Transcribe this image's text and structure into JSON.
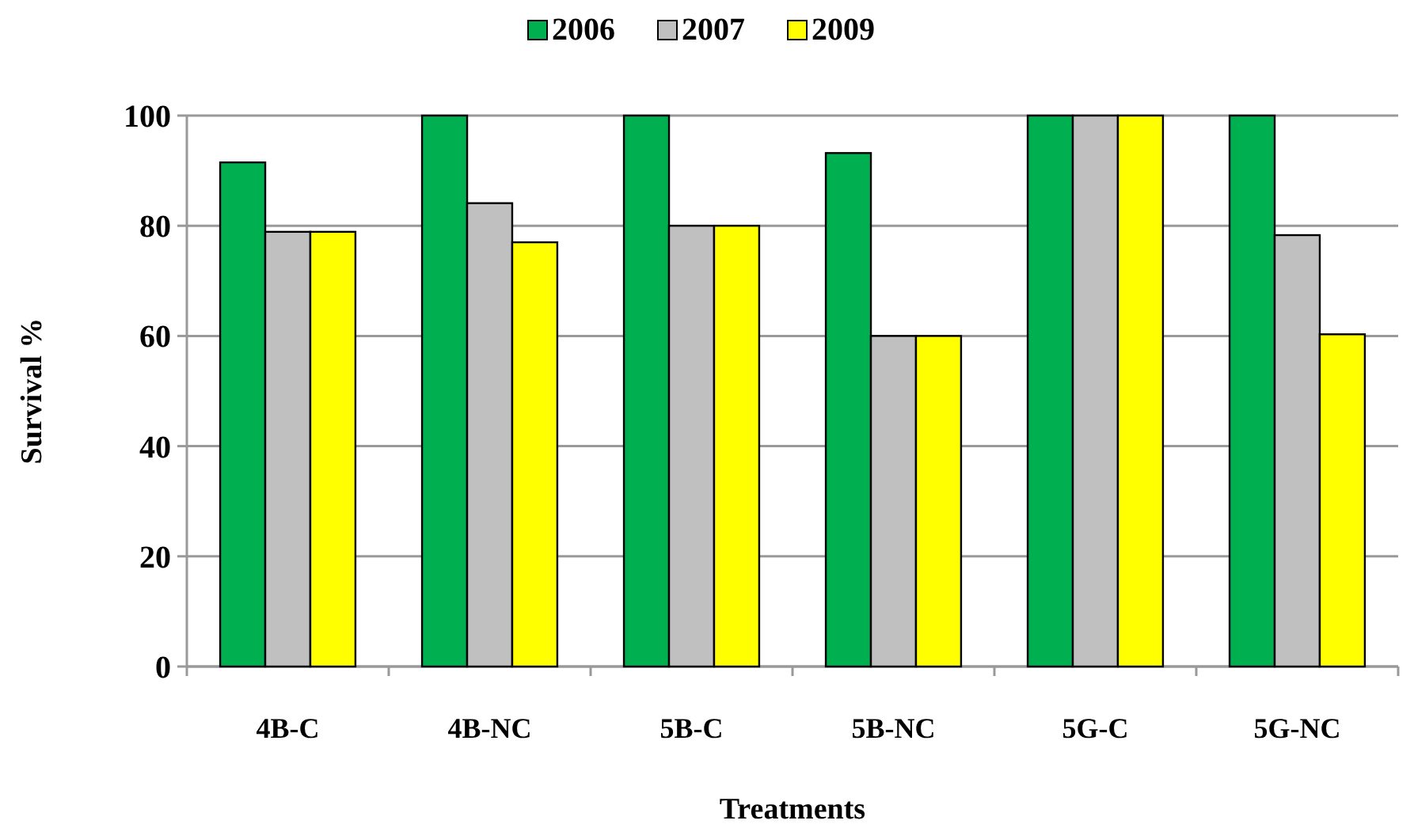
{
  "chart_data": {
    "type": "bar",
    "xlabel": "Treatments",
    "ylabel": "Survival %",
    "categories": [
      "4B-C",
      "4B-NC",
      "5B-C",
      "5B-NC",
      "5G-C",
      "5G-NC"
    ],
    "series": [
      {
        "name": "2006",
        "color": "#00b050",
        "values": [
          91.5,
          100,
          100,
          93.2,
          100,
          100
        ]
      },
      {
        "name": "2007",
        "color": "#c0c0c0",
        "values": [
          78.9,
          84.1,
          80,
          60,
          100,
          78.3
        ]
      },
      {
        "name": "2009",
        "color": "#ffff00",
        "values": [
          78.9,
          77,
          80,
          60,
          100,
          60.3
        ]
      }
    ],
    "ylim": [
      0,
      100
    ],
    "yticks": [
      0,
      20,
      40,
      60,
      80,
      100
    ],
    "grid": "y",
    "legend": "top"
  }
}
